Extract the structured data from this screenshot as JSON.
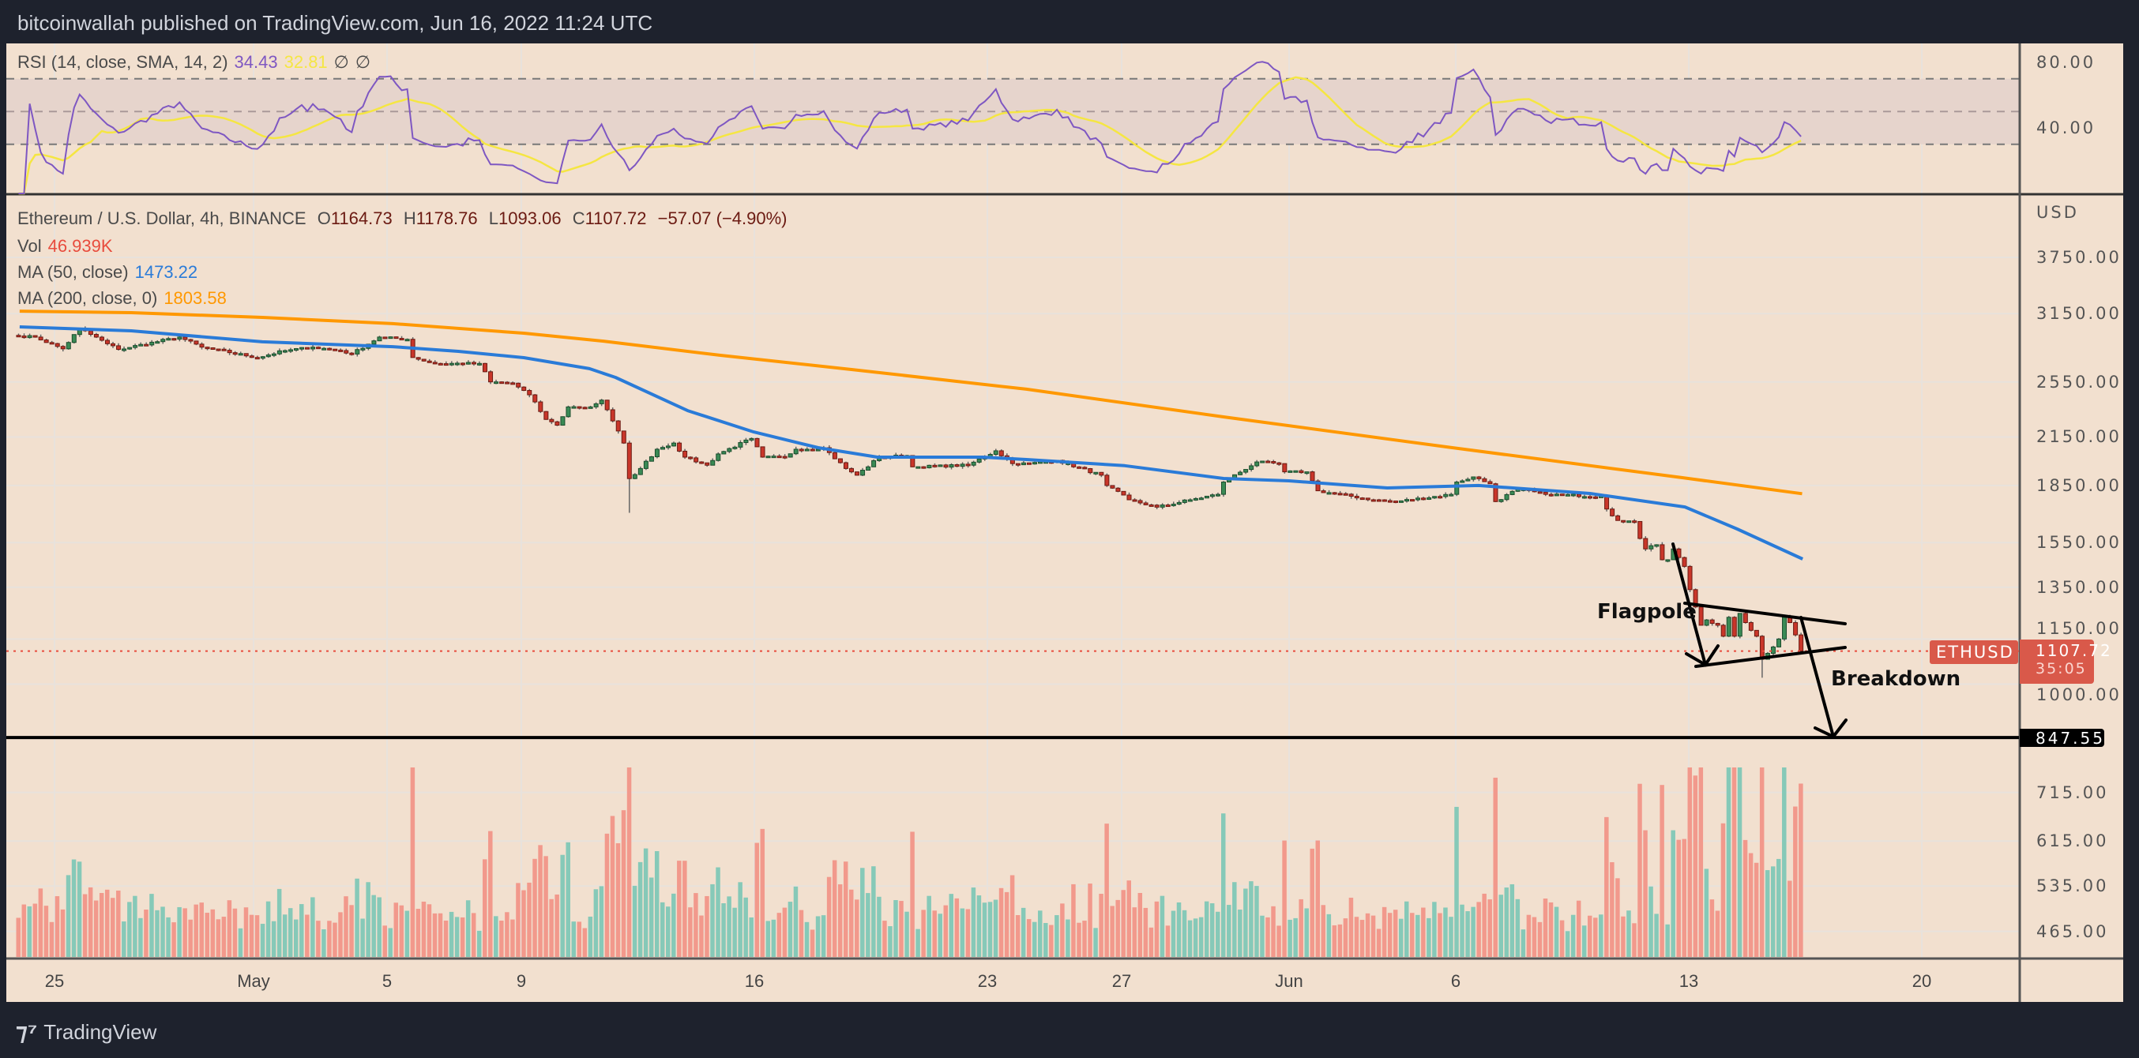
{
  "header": {
    "attribution": "bitcoinwallah published on TradingView.com, Jun 16, 2022 11:24 UTC"
  },
  "rsi_legend": {
    "label": "RSI (14, close, SMA, 14, 2)",
    "rsi_value": "34.43",
    "sma_value": "32.81",
    "extra1": "∅",
    "extra2": "∅"
  },
  "legend": {
    "symbol": "Ethereum / U.S. Dollar, 4h, BINANCE",
    "o_label": "O",
    "o": "1164.73",
    "h_label": "H",
    "h": "1178.76",
    "l_label": "L",
    "l": "1093.06",
    "c_label": "C",
    "c": "1107.72",
    "change": "−57.07 (−4.90%)",
    "vol_label": "Vol",
    "vol": "46.939K",
    "ma50_label": "MA (50, close)",
    "ma50": "1473.22",
    "ma200_label": "MA (200, close, 0)",
    "ma200": "1803.58"
  },
  "price_tags": {
    "symbol": "ETHUSD",
    "last": "1107.72",
    "countdown": "35:05",
    "target": "847.55",
    "currency": "USD"
  },
  "annotations": {
    "flagpole": "Flagpole",
    "breakdown": "Breakdown"
  },
  "footer": {
    "logo": "TradingView"
  },
  "colors": {
    "up": "#3a8a55",
    "down": "#c9362a",
    "ma50": "#2a7bd8",
    "ma200": "#ff9800",
    "rsi": "#7e57c2",
    "rsi_sma": "#f5e642",
    "vol_up": "#86c9b8",
    "vol_down": "#f2998c"
  },
  "chart_data": {
    "type": "candlestick",
    "title": "Ethereum / U.S. Dollar, 4h, BINANCE",
    "y_scale": "log",
    "price_ticks": [
      3750,
      3150,
      2550,
      2150,
      1850,
      1550,
      1350,
      1150,
      1000,
      715,
      615,
      535,
      465
    ],
    "price_tick_labels": [
      "3750.00",
      "3150.00",
      "2550.00",
      "2150.00",
      "1850.00",
      "1550.00",
      "1350.00",
      "1150.00",
      "1000.00",
      "715.00",
      "615.00",
      "535.00",
      "465.00"
    ],
    "time_labels": [
      "25",
      "May",
      "5",
      "9",
      "16",
      "23",
      "27",
      "Jun",
      "6",
      "13",
      "20"
    ],
    "rsi_ticks": [
      80,
      40
    ],
    "rsi_tick_labels": [
      "80.00",
      "40.00"
    ],
    "rsi_levels": [
      70,
      50,
      30
    ],
    "close_anchors": [
      [
        0,
        2940
      ],
      [
        3,
        2930
      ],
      [
        8,
        2825
      ],
      [
        11,
        3010
      ],
      [
        16,
        2870
      ],
      [
        18,
        2820
      ],
      [
        29,
        2930
      ],
      [
        33,
        2840
      ],
      [
        43,
        2750
      ],
      [
        48,
        2810
      ],
      [
        53,
        2840
      ],
      [
        58,
        2810
      ],
      [
        60,
        2780
      ],
      [
        65,
        2930
      ],
      [
        70,
        2910
      ],
      [
        71,
        2750
      ],
      [
        75,
        2700
      ],
      [
        83,
        2700
      ],
      [
        85,
        2550
      ],
      [
        89,
        2540
      ],
      [
        92,
        2450
      ],
      [
        95,
        2270
      ],
      [
        97,
        2230
      ],
      [
        99,
        2360
      ],
      [
        103,
        2360
      ],
      [
        105,
        2410
      ],
      [
        107,
        2260
      ],
      [
        109,
        2110
      ],
      [
        110,
        1890
      ],
      [
        112,
        1950
      ],
      [
        115,
        2070
      ],
      [
        118,
        2110
      ],
      [
        120,
        2020
      ],
      [
        124,
        1970
      ],
      [
        126,
        2040
      ],
      [
        132,
        2140
      ],
      [
        134,
        2020
      ],
      [
        138,
        2020
      ],
      [
        140,
        2070
      ],
      [
        145,
        2080
      ],
      [
        149,
        1950
      ],
      [
        151,
        1910
      ],
      [
        155,
        2020
      ],
      [
        160,
        2030
      ],
      [
        161,
        1960
      ],
      [
        171,
        1970
      ],
      [
        176,
        2060
      ],
      [
        179,
        1980
      ],
      [
        182,
        1980
      ],
      [
        187,
        2000
      ],
      [
        195,
        1910
      ],
      [
        196,
        1850
      ],
      [
        200,
        1770
      ],
      [
        205,
        1730
      ],
      [
        211,
        1770
      ],
      [
        216,
        1800
      ],
      [
        217,
        1870
      ],
      [
        223,
        1990
      ],
      [
        227,
        1980
      ],
      [
        228,
        1930
      ],
      [
        232,
        1930
      ],
      [
        234,
        1820
      ],
      [
        244,
        1770
      ],
      [
        248,
        1760
      ],
      [
        258,
        1800
      ],
      [
        259,
        1870
      ],
      [
        262,
        1900
      ],
      [
        265,
        1860
      ],
      [
        266,
        1760
      ],
      [
        270,
        1830
      ],
      [
        275,
        1800
      ],
      [
        285,
        1790
      ],
      [
        286,
        1720
      ],
      [
        288,
        1660
      ],
      [
        291,
        1655
      ],
      [
        292,
        1570
      ],
      [
        293,
        1520
      ],
      [
        295,
        1540
      ],
      [
        296,
        1470
      ],
      [
        297,
        1470
      ],
      [
        298,
        1520
      ],
      [
        299,
        1480
      ],
      [
        300,
        1440
      ],
      [
        301,
        1340
      ],
      [
        302,
        1270
      ],
      [
        303,
        1200
      ],
      [
        304,
        1220
      ],
      [
        306,
        1200
      ],
      [
        307,
        1160
      ],
      [
        308,
        1230
      ],
      [
        309,
        1160
      ],
      [
        310,
        1245
      ],
      [
        311,
        1210
      ],
      [
        313,
        1160
      ],
      [
        314,
        1080
      ],
      [
        315,
        1100
      ],
      [
        317,
        1150
      ],
      [
        318,
        1230
      ],
      [
        319,
        1210
      ],
      [
        320,
        1164.73
      ],
      [
        321,
        1107.72
      ]
    ],
    "low_overrides": {
      "110": 1700,
      "314": 1020
    },
    "ma50": [
      [
        0.7,
        3024
      ],
      [
        20.8,
        2987
      ],
      [
        44.4,
        2887
      ],
      [
        67.9,
        2844
      ],
      [
        79.7,
        2803
      ],
      [
        91.5,
        2749
      ],
      [
        103.3,
        2657
      ],
      [
        108,
        2586
      ],
      [
        121,
        2333
      ],
      [
        132.9,
        2184
      ],
      [
        144.5,
        2080
      ],
      [
        155.2,
        2020
      ],
      [
        174.1,
        2020
      ],
      [
        182,
        2005
      ],
      [
        199.7,
        1967
      ],
      [
        217.5,
        1891
      ],
      [
        229.3,
        1877
      ],
      [
        247,
        1836
      ],
      [
        263.4,
        1850
      ],
      [
        283.5,
        1805
      ],
      [
        300.6,
        1731
      ],
      [
        310,
        1617
      ],
      [
        321.8,
        1473.22
      ]
    ],
    "ma200": [
      [
        0.7,
        3175
      ],
      [
        20.8,
        3160
      ],
      [
        44.4,
        3114
      ],
      [
        67.9,
        3054
      ],
      [
        91.5,
        2965
      ],
      [
        105.7,
        2894
      ],
      [
        126.9,
        2769
      ],
      [
        150.5,
        2650
      ],
      [
        182,
        2493
      ],
      [
        217.5,
        2288
      ],
      [
        258.7,
        2080
      ],
      [
        300,
        1896
      ],
      [
        321.7,
        1803.58
      ]
    ],
    "target_level": 847.55,
    "last_price": 1107.72
  }
}
